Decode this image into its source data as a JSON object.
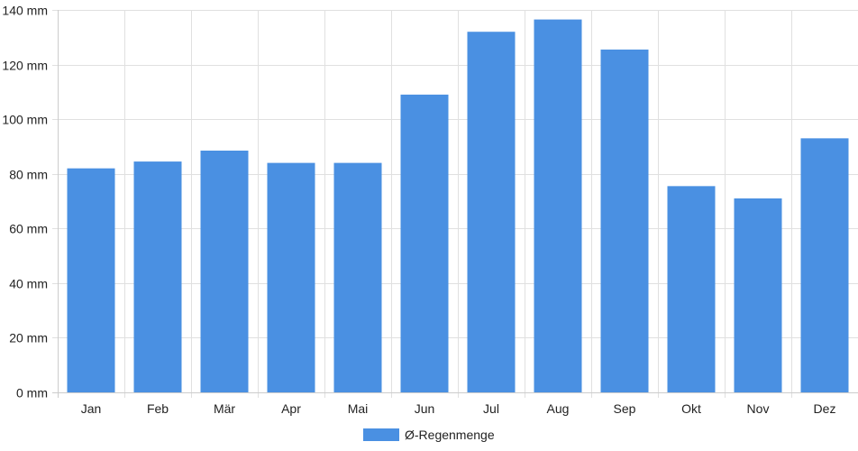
{
  "chart_data": {
    "type": "bar",
    "categories": [
      "Jan",
      "Feb",
      "Mär",
      "Apr",
      "Mai",
      "Jun",
      "Jul",
      "Aug",
      "Sep",
      "Okt",
      "Nov",
      "Dez"
    ],
    "series": [
      {
        "name": "Ø-Regenmenge",
        "values": [
          82,
          84.5,
          88.5,
          84,
          84,
          109,
          132,
          136.5,
          125.5,
          75.5,
          71,
          93
        ],
        "color": "#4a90e2"
      }
    ],
    "ylim": [
      0,
      140
    ],
    "yticks": [
      0,
      20,
      40,
      60,
      80,
      100,
      120,
      140
    ],
    "ytick_labels": [
      "0 mm",
      "20 mm",
      "40 mm",
      "60 mm",
      "80 mm",
      "100 mm",
      "120 mm",
      "140 mm"
    ],
    "title": "",
    "xlabel": "",
    "ylabel": "",
    "grid": true,
    "legend_position": "bottom-center",
    "colors": {
      "grid": "#e0e0e0",
      "axis": "#cccccc",
      "text": "#222222"
    }
  }
}
